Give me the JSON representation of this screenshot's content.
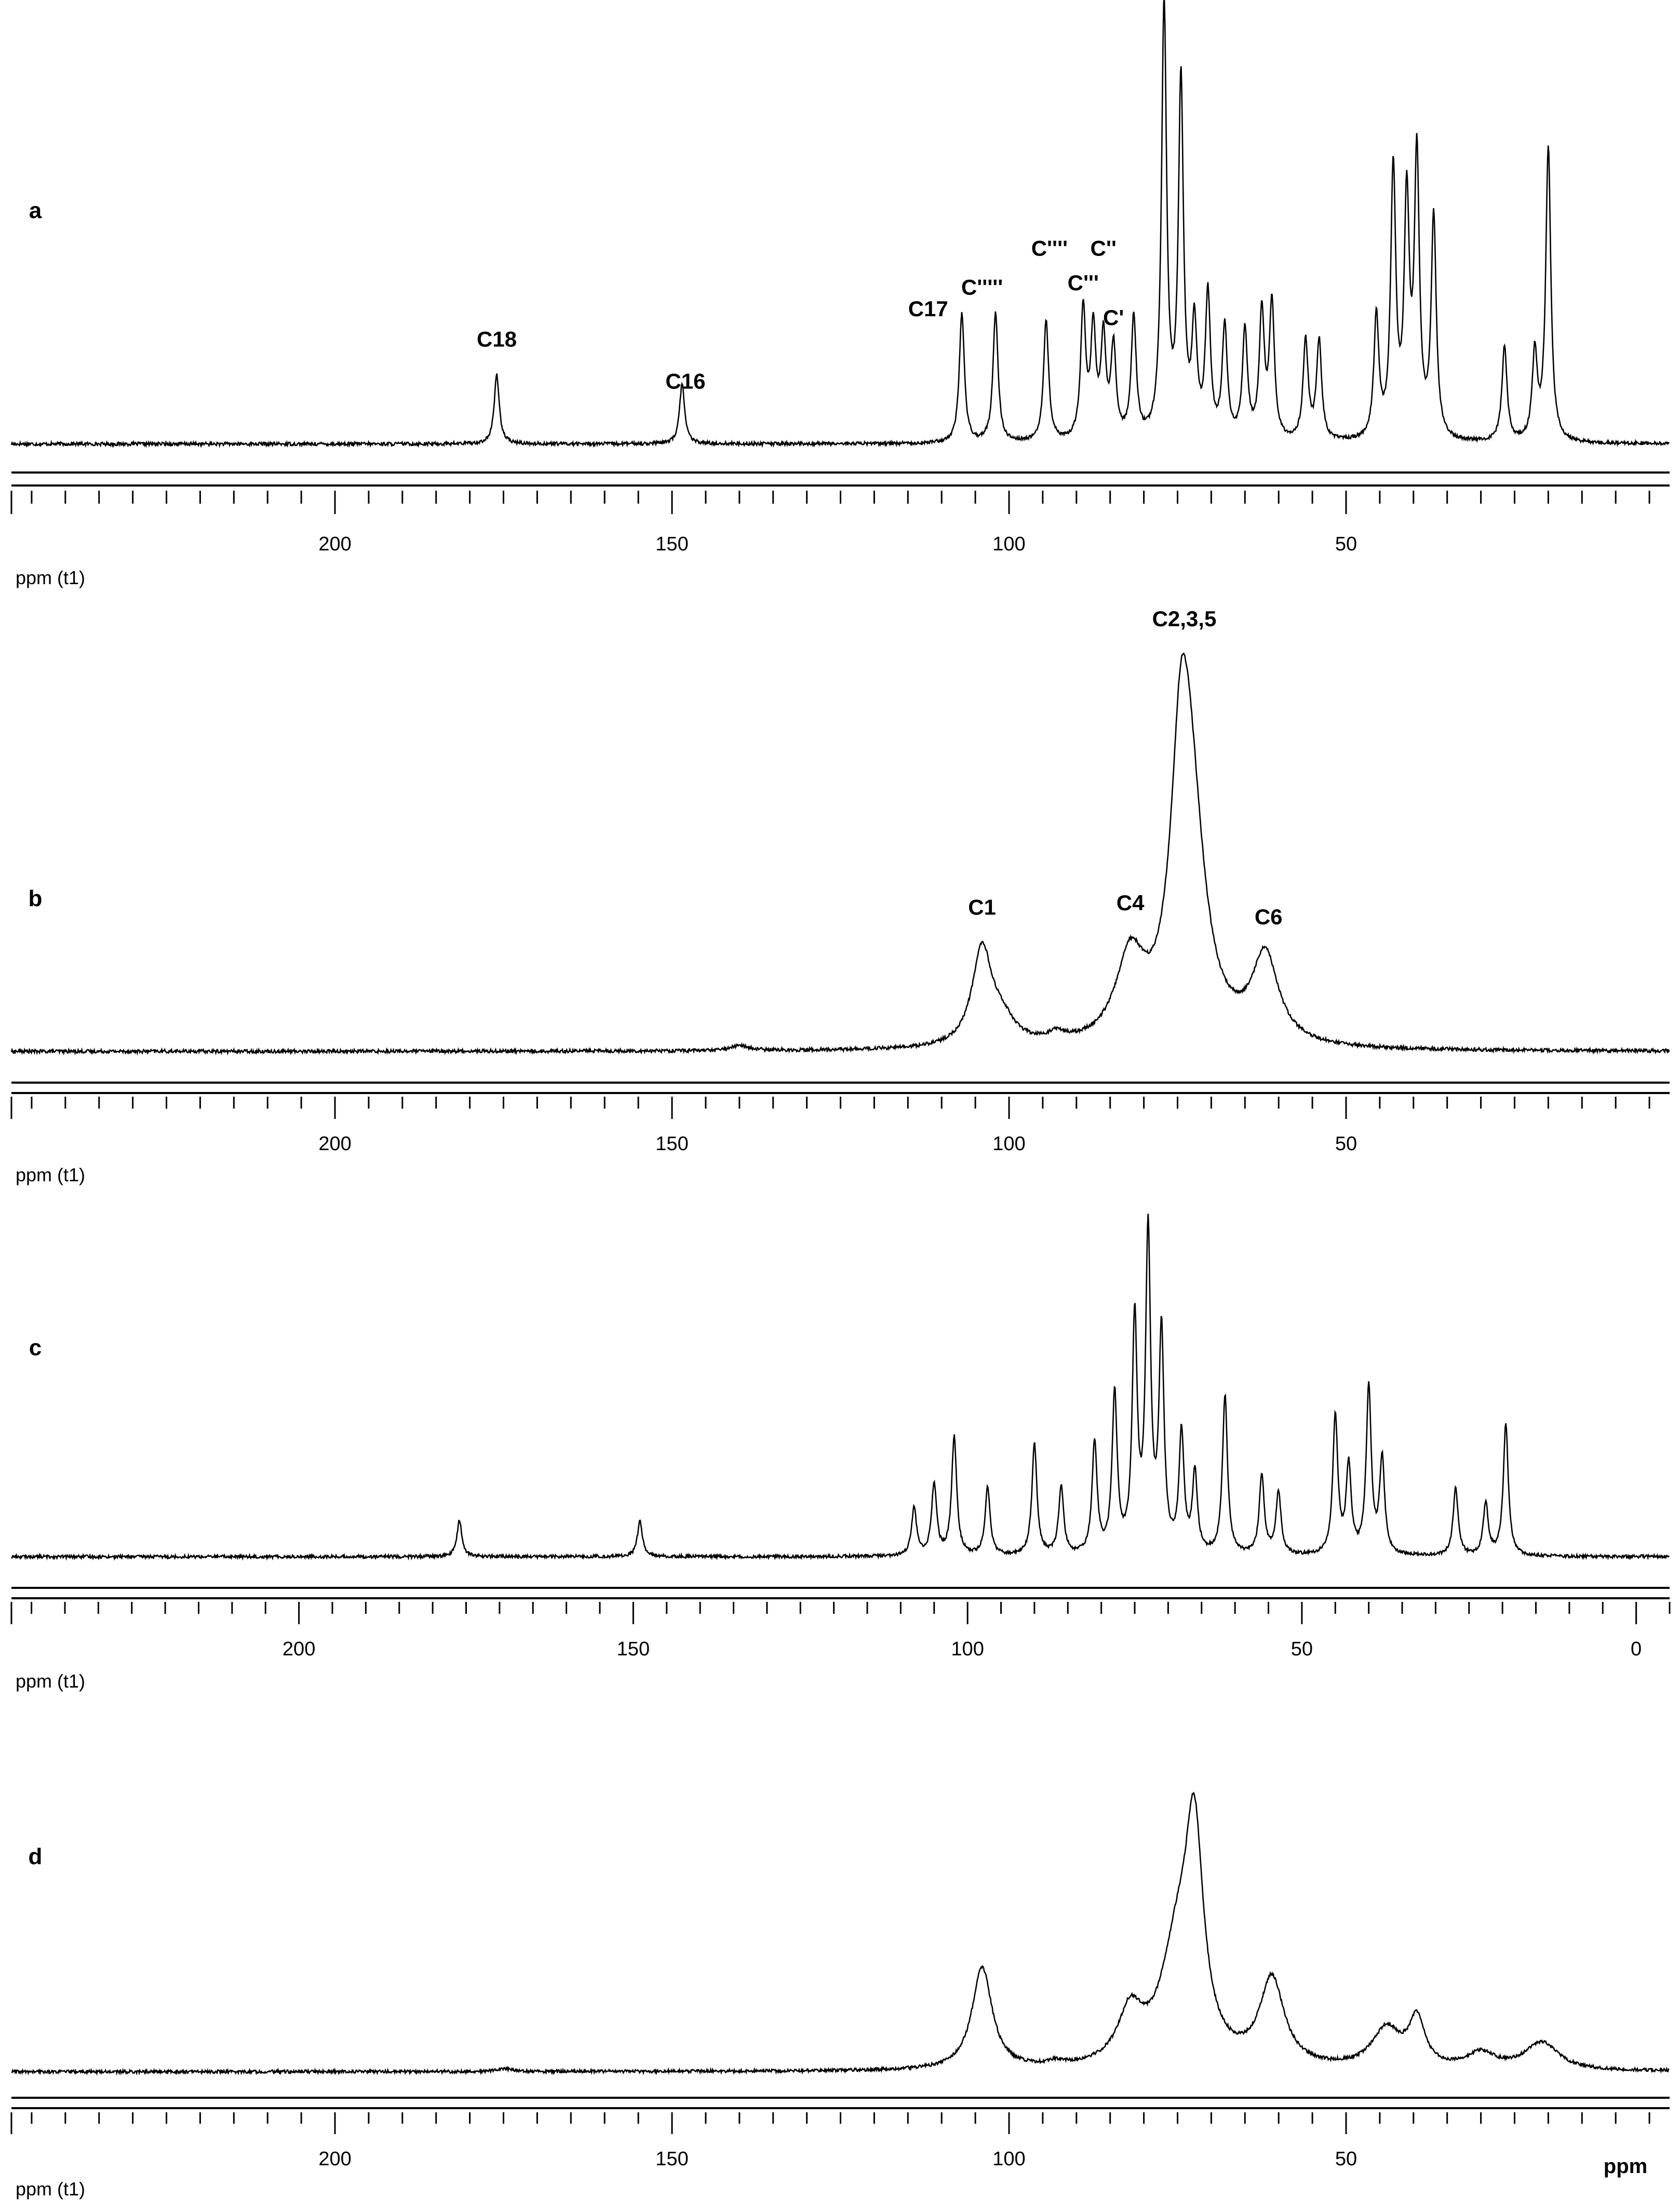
{
  "figure_label": "ppm",
  "chart_data": [
    {
      "type": "line",
      "panel_label": "a",
      "axis_unit_label": "ppm (t1)",
      "x_ticks": [
        "200",
        "150",
        "100",
        "50"
      ],
      "xlim": [
        248,
        2
      ],
      "peaks": [
        {
          "ppm": 176,
          "height": 0.16
        },
        {
          "ppm": 148.5,
          "height": 0.14
        },
        {
          "ppm": 107,
          "height": 0.3
        },
        {
          "ppm": 102,
          "height": 0.3
        },
        {
          "ppm": 94.5,
          "height": 0.28
        },
        {
          "ppm": 89,
          "height": 0.3
        },
        {
          "ppm": 87.5,
          "height": 0.25
        },
        {
          "ppm": 86,
          "height": 0.23
        },
        {
          "ppm": 84.5,
          "height": 0.21
        },
        {
          "ppm": 81.5,
          "height": 0.28
        },
        {
          "ppm": 77,
          "height": 1.0
        },
        {
          "ppm": 74.5,
          "height": 0.82
        },
        {
          "ppm": 72.5,
          "height": 0.25
        },
        {
          "ppm": 70.5,
          "height": 0.33
        },
        {
          "ppm": 68,
          "height": 0.26
        },
        {
          "ppm": 65,
          "height": 0.25
        },
        {
          "ppm": 62.5,
          "height": 0.29
        },
        {
          "ppm": 61,
          "height": 0.31
        },
        {
          "ppm": 56,
          "height": 0.23
        },
        {
          "ppm": 54,
          "height": 0.23
        },
        {
          "ppm": 45.5,
          "height": 0.28
        },
        {
          "ppm": 43,
          "height": 0.62
        },
        {
          "ppm": 41,
          "height": 0.54
        },
        {
          "ppm": 39.5,
          "height": 0.64
        },
        {
          "ppm": 37,
          "height": 0.51
        },
        {
          "ppm": 26.5,
          "height": 0.22
        },
        {
          "ppm": 22,
          "height": 0.2
        },
        {
          "ppm": 20,
          "height": 0.68
        }
      ],
      "labels": [
        {
          "text": "C18",
          "ppm": 176
        },
        {
          "text": "C16",
          "ppm": 148
        },
        {
          "text": "C17",
          "ppm": 112
        },
        {
          "text": "C'''''",
          "ppm": 104
        },
        {
          "text": "C''''",
          "ppm": 94
        },
        {
          "text": "C'''",
          "ppm": 89
        },
        {
          "text": "C''",
          "ppm": 86
        },
        {
          "text": "C'",
          "ppm": 84.5
        }
      ]
    },
    {
      "type": "line",
      "panel_label": "b",
      "axis_unit_label": "ppm (t1)",
      "x_ticks": [
        "200",
        "150",
        "100",
        "50"
      ],
      "xlim": [
        248,
        2
      ],
      "peaks": [
        {
          "ppm": 104,
          "height": 0.22,
          "width": 1.8
        },
        {
          "ppm": 101,
          "height": 0.05,
          "width": 2.5
        },
        {
          "ppm": 93,
          "height": 0.02,
          "width": 1.5
        },
        {
          "ppm": 82,
          "height": 0.19,
          "width": 2.6
        },
        {
          "ppm": 74.5,
          "height": 0.52,
          "width": 1.8
        },
        {
          "ppm": 73,
          "height": 0.46,
          "width": 2.6
        },
        {
          "ppm": 62,
          "height": 0.2,
          "width": 2.4
        },
        {
          "ppm": 140,
          "height": 0.012,
          "width": 1.5
        }
      ],
      "labels": [
        {
          "text": "C1",
          "ppm": 104
        },
        {
          "text": "C4",
          "ppm": 82
        },
        {
          "text": "C2,3,5",
          "ppm": 74
        },
        {
          "text": "C6",
          "ppm": 61.5
        }
      ]
    },
    {
      "type": "line",
      "panel_label": "c",
      "axis_unit_label": "ppm (t1)",
      "x_ticks": [
        "200",
        "150",
        "100",
        "50",
        "0"
      ],
      "xlim": [
        243,
        -5
      ],
      "peaks": [
        {
          "ppm": 176,
          "height": 0.09
        },
        {
          "ppm": 149,
          "height": 0.09
        },
        {
          "ppm": 108,
          "height": 0.12
        },
        {
          "ppm": 105,
          "height": 0.18
        },
        {
          "ppm": 102,
          "height": 0.3
        },
        {
          "ppm": 97,
          "height": 0.17
        },
        {
          "ppm": 90,
          "height": 0.28
        },
        {
          "ppm": 86,
          "height": 0.17
        },
        {
          "ppm": 81,
          "height": 0.28
        },
        {
          "ppm": 78,
          "height": 0.4
        },
        {
          "ppm": 75,
          "height": 0.58
        },
        {
          "ppm": 73,
          "height": 0.8
        },
        {
          "ppm": 71,
          "height": 0.55
        },
        {
          "ppm": 68,
          "height": 0.3
        },
        {
          "ppm": 66,
          "height": 0.2
        },
        {
          "ppm": 61.5,
          "height": 0.4
        },
        {
          "ppm": 56,
          "height": 0.2
        },
        {
          "ppm": 53.5,
          "height": 0.16
        },
        {
          "ppm": 45,
          "height": 0.35
        },
        {
          "ppm": 43,
          "height": 0.22
        },
        {
          "ppm": 40,
          "height": 0.42
        },
        {
          "ppm": 38,
          "height": 0.24
        },
        {
          "ppm": 27,
          "height": 0.17
        },
        {
          "ppm": 22.5,
          "height": 0.13
        },
        {
          "ppm": 19.5,
          "height": 0.33
        }
      ],
      "labels": []
    },
    {
      "type": "line",
      "panel_label": "d",
      "axis_unit_label": "ppm (t1)",
      "x_ticks": [
        "200",
        "150",
        "100",
        "50"
      ],
      "xlim": [
        248,
        2
      ],
      "peaks": [
        {
          "ppm": 104,
          "height": 0.26,
          "width": 1.8
        },
        {
          "ppm": 93,
          "height": 0.01,
          "width": 1.5
        },
        {
          "ppm": 82,
          "height": 0.13,
          "width": 2.2
        },
        {
          "ppm": 75,
          "height": 0.28,
          "width": 3.0
        },
        {
          "ppm": 72.5,
          "height": 0.52,
          "width": 1.6
        },
        {
          "ppm": 61,
          "height": 0.22,
          "width": 2.2
        },
        {
          "ppm": 44,
          "height": 0.1,
          "width": 2.6
        },
        {
          "ppm": 39.5,
          "height": 0.12,
          "width": 1.4
        },
        {
          "ppm": 30,
          "height": 0.04,
          "width": 2.5
        },
        {
          "ppm": 21,
          "height": 0.07,
          "width": 3.0
        },
        {
          "ppm": 175,
          "height": 0.008,
          "width": 1.2
        }
      ],
      "labels": []
    }
  ]
}
